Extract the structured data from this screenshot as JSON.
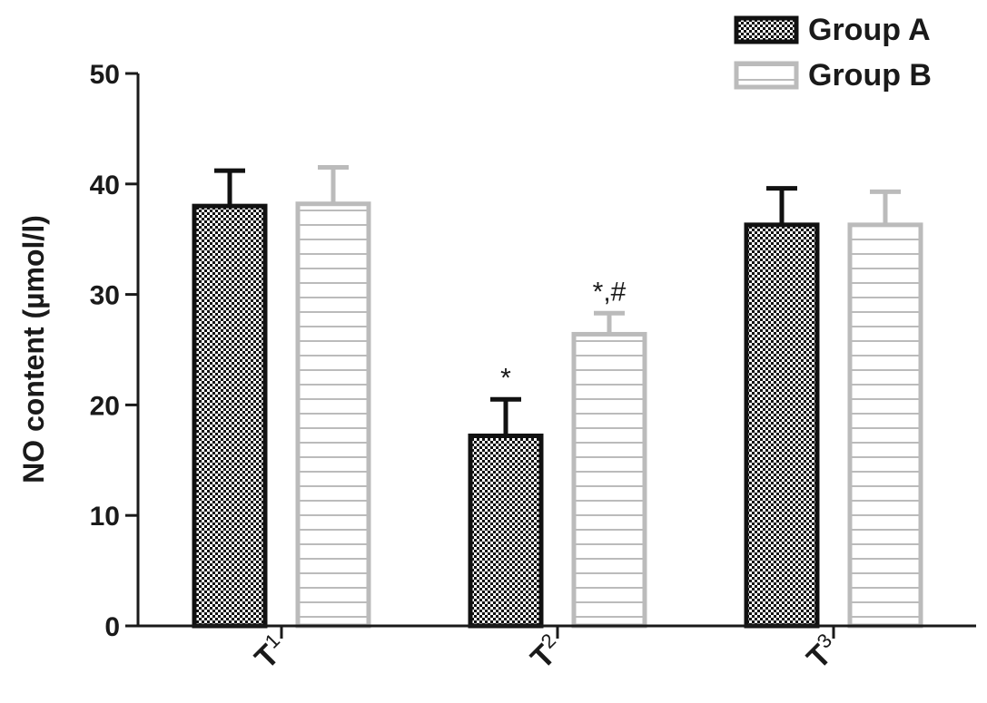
{
  "chart_data": {
    "type": "bar",
    "title": "",
    "xlabel": "",
    "ylabel": "NO content (µmol/l)",
    "ylim": [
      0,
      50
    ],
    "yticks": [
      "0",
      "10",
      "20",
      "30",
      "40",
      "50"
    ],
    "grid": false,
    "legend_position": "top-right",
    "categories": [
      {
        "main": "T",
        "sub": "1"
      },
      {
        "main": "T",
        "sub": "2"
      },
      {
        "main": "T",
        "sub": "3"
      }
    ],
    "series": [
      {
        "name": "Group A",
        "values": [
          38.0,
          17.2,
          36.3
        ],
        "errors": [
          3.2,
          3.3,
          3.3
        ],
        "pattern": "checker",
        "color": "#111111"
      },
      {
        "name": "Group B",
        "values": [
          38.2,
          26.4,
          36.3
        ],
        "errors": [
          3.3,
          1.9,
          3.0
        ],
        "pattern": "horizontal-lines",
        "color": "#bbbbbb"
      }
    ],
    "annotations": [
      {
        "category": 1,
        "series": 0,
        "text": "*"
      },
      {
        "category": 1,
        "series": 1,
        "text": "*,#"
      }
    ]
  }
}
